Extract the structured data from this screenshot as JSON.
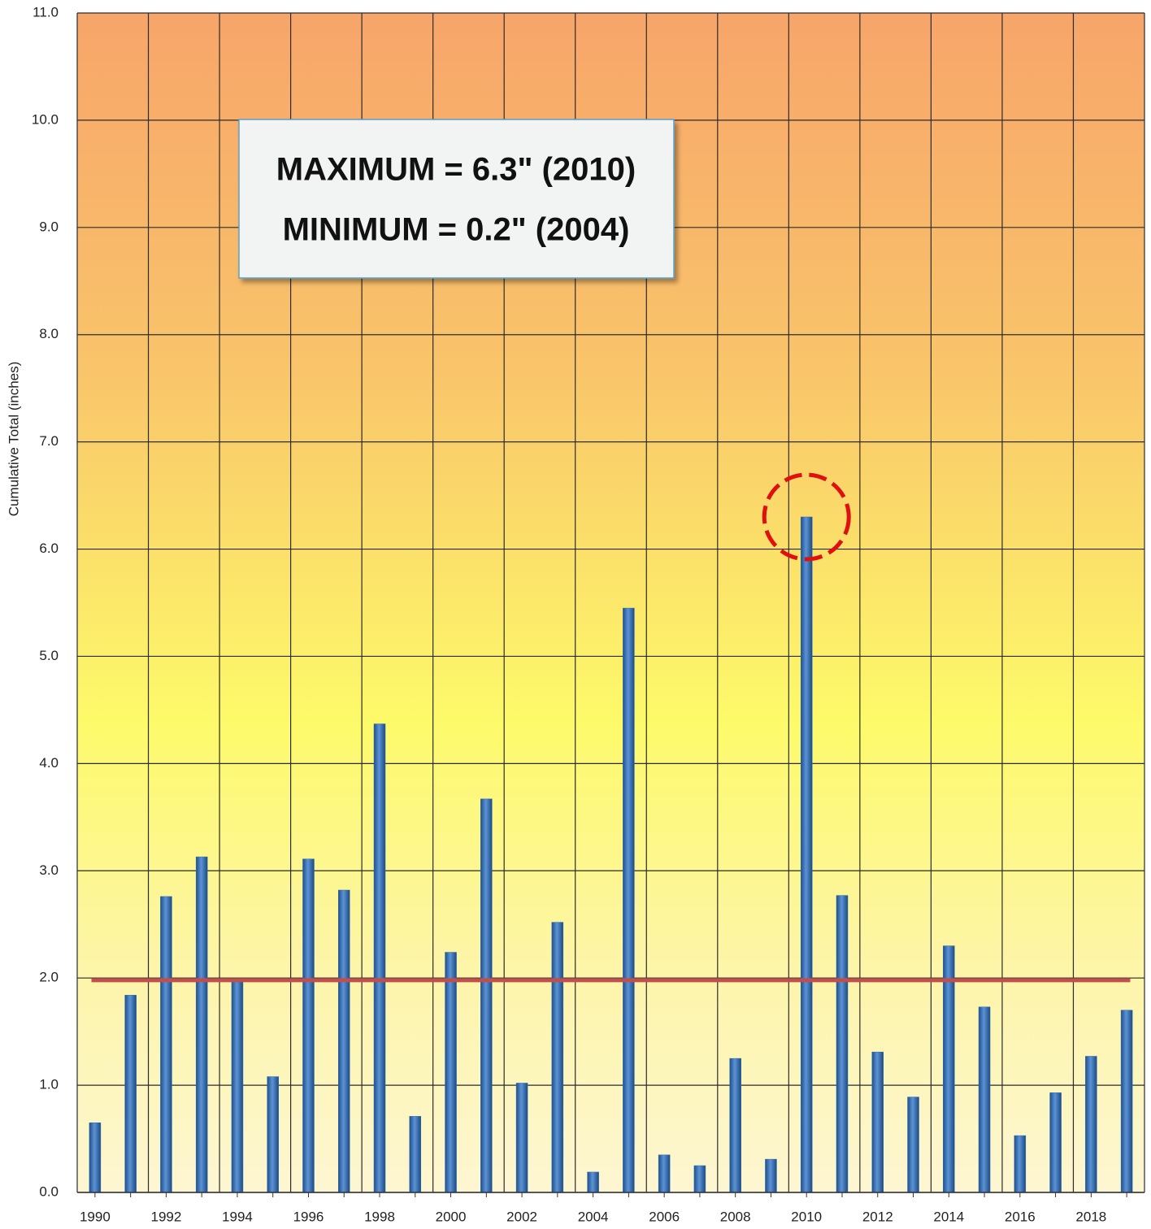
{
  "chart_data": {
    "type": "bar",
    "y_label": "Cumulative Total (inches)",
    "annotations": [
      "MAXIMUM = 6.3\"  (2010)",
      "MINIMUM = 0.2\" (2004)"
    ],
    "categories": [
      "1990",
      null,
      "1992",
      null,
      "1994",
      null,
      "1996",
      null,
      "1998",
      null,
      "2000",
      null,
      "2002",
      null,
      "2004",
      null,
      "2006",
      null,
      "2008",
      null,
      "2010",
      null,
      "2012",
      null,
      "2014",
      null,
      "2016",
      null,
      "2018",
      null
    ],
    "values": [
      0.65,
      1.84,
      2.76,
      3.13,
      1.97,
      1.08,
      3.11,
      2.82,
      4.37,
      0.71,
      2.24,
      3.67,
      1.02,
      2.52,
      0.19,
      5.45,
      0.35,
      0.25,
      1.25,
      0.31,
      6.3,
      2.77,
      1.31,
      0.89,
      2.3,
      1.73,
      0.53,
      0.93,
      1.27,
      1.7
    ],
    "color": "#2e6db4",
    "reference_line": {
      "value": 1.98,
      "color": "#c0504d"
    },
    "ylim": [
      0,
      11
    ],
    "yticks": [
      {
        "value": 0,
        "label": "0.0"
      },
      {
        "value": 1,
        "label": "1.0"
      },
      {
        "value": 2,
        "label": "2.0"
      },
      {
        "value": 3,
        "label": "3.0"
      },
      {
        "value": 4,
        "label": "4.0"
      },
      {
        "value": 5,
        "label": "5.0"
      },
      {
        "value": 6,
        "label": "6.0"
      },
      {
        "value": 7,
        "label": "7.0"
      },
      {
        "value": 8,
        "label": "8.0"
      },
      {
        "value": 9,
        "label": "9.0"
      },
      {
        "value": 10,
        "label": "10.0"
      },
      {
        "value": 11,
        "label": "11.0"
      }
    ],
    "grid": true
  }
}
